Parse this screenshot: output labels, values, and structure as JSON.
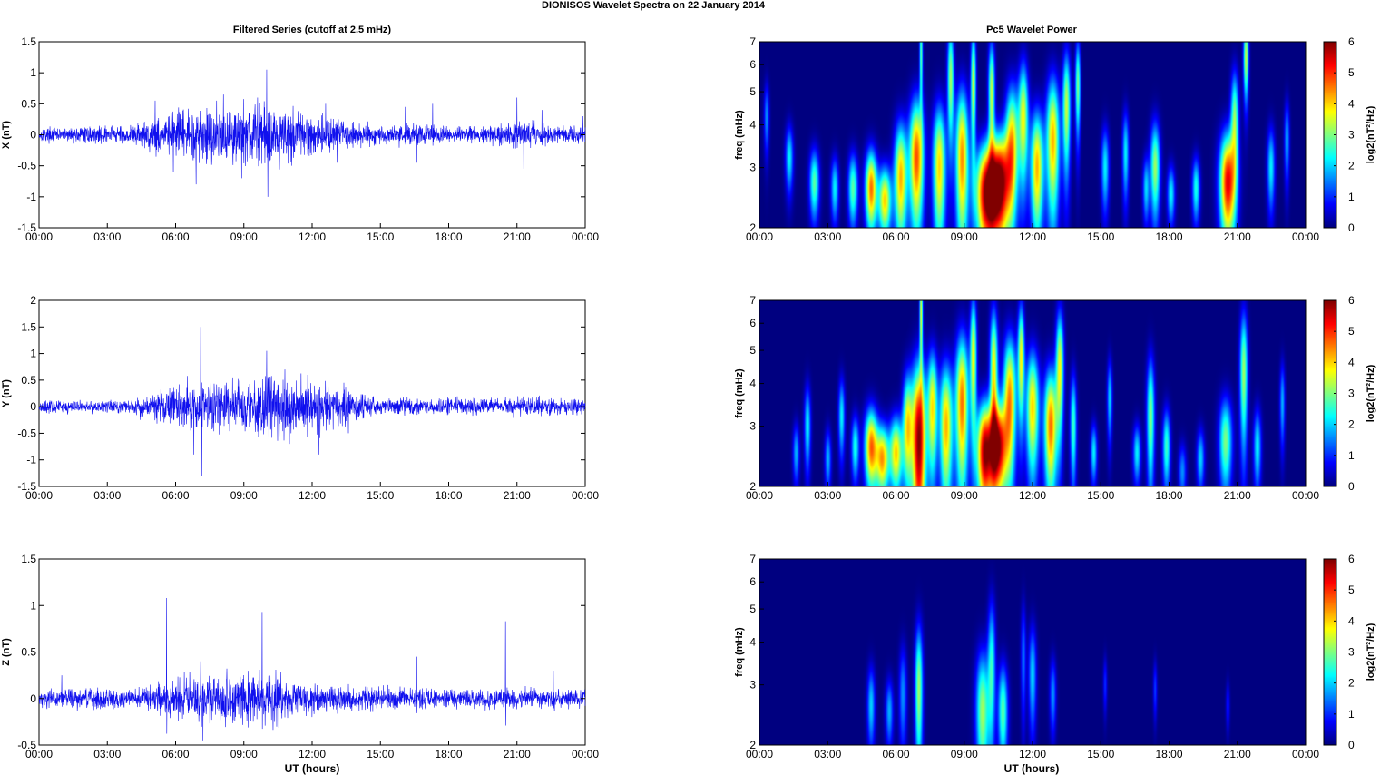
{
  "figure": {
    "title": "DIONISOS Wavelet Spectra on 22 January   2014",
    "left_title": "Filtered Series (cutoff at 2.5 mHz)",
    "right_title": "Pc5 Wavelet Power",
    "xlabel": "UT (hours)"
  },
  "colors": {
    "series_line": "#1010ee",
    "axes": "#000000",
    "background_map": "#00008f"
  },
  "chart_data": [
    {
      "type": "line",
      "panel": "x-series",
      "ylabel": "X (nT)",
      "ylim": [
        -1.5,
        1.5
      ],
      "yticks": [
        -1.5,
        -1,
        -0.5,
        0,
        0.5,
        1,
        1.5
      ],
      "ytick_labels": [
        "-1.5",
        "-1",
        "-0.5",
        "0",
        "0.5",
        "1",
        "1.5"
      ],
      "xlim_hours": [
        0,
        24
      ],
      "xtick_labels": [
        "00:00",
        "03:00",
        "06:00",
        "09:00",
        "12:00",
        "15:00",
        "18:00",
        "21:00",
        "00:00"
      ],
      "noise_amplitude": [
        [
          0,
          0.08
        ],
        [
          2,
          0.09
        ],
        [
          4,
          0.12
        ],
        [
          5,
          0.22
        ],
        [
          6,
          0.25
        ],
        [
          7,
          0.3
        ],
        [
          8,
          0.32
        ],
        [
          9,
          0.35
        ],
        [
          10,
          0.38
        ],
        [
          11,
          0.3
        ],
        [
          12,
          0.24
        ],
        [
          13,
          0.2
        ],
        [
          14,
          0.14
        ],
        [
          15,
          0.1
        ],
        [
          16,
          0.12
        ],
        [
          17,
          0.13
        ],
        [
          18,
          0.09
        ],
        [
          19,
          0.1
        ],
        [
          20,
          0.11
        ],
        [
          21,
          0.16
        ],
        [
          22,
          0.12
        ],
        [
          23,
          0.1
        ],
        [
          24,
          0.1
        ]
      ],
      "spikes": [
        [
          5.1,
          0.55
        ],
        [
          5.9,
          -0.6
        ],
        [
          6.9,
          -0.8
        ],
        [
          7.8,
          0.55
        ],
        [
          8.1,
          0.65
        ],
        [
          8.9,
          -0.7
        ],
        [
          10.0,
          1.05
        ],
        [
          10.05,
          -1.0
        ],
        [
          9.6,
          0.6
        ],
        [
          11.1,
          -0.5
        ],
        [
          12.6,
          0.5
        ],
        [
          13.1,
          -0.45
        ],
        [
          16.1,
          0.45
        ],
        [
          16.6,
          -0.45
        ],
        [
          17.3,
          0.5
        ],
        [
          21.0,
          0.6
        ],
        [
          21.3,
          -0.55
        ],
        [
          22.1,
          0.4
        ],
        [
          23.9,
          0.3
        ]
      ]
    },
    {
      "type": "line",
      "panel": "y-series",
      "ylabel": "Y (nT)",
      "ylim": [
        -1.5,
        2
      ],
      "yticks": [
        -1.5,
        -1,
        -0.5,
        0,
        0.5,
        1,
        1.5,
        2
      ],
      "ytick_labels": [
        "-1.5",
        "-1",
        "-0.5",
        "0",
        "0.5",
        "1",
        "1.5",
        "2"
      ],
      "xlim_hours": [
        0,
        24
      ],
      "xtick_labels": [
        "00:00",
        "03:00",
        "06:00",
        "09:00",
        "12:00",
        "15:00",
        "18:00",
        "21:00",
        "00:00"
      ],
      "noise_amplitude": [
        [
          0,
          0.08
        ],
        [
          4,
          0.1
        ],
        [
          5,
          0.2
        ],
        [
          6,
          0.28
        ],
        [
          7,
          0.35
        ],
        [
          8,
          0.35
        ],
        [
          9,
          0.35
        ],
        [
          10,
          0.45
        ],
        [
          11,
          0.4
        ],
        [
          12,
          0.35
        ],
        [
          13,
          0.32
        ],
        [
          14,
          0.18
        ],
        [
          15,
          0.1
        ],
        [
          16,
          0.12
        ],
        [
          17,
          0.1
        ],
        [
          18,
          0.12
        ],
        [
          19,
          0.12
        ],
        [
          20,
          0.1
        ],
        [
          21,
          0.12
        ],
        [
          22,
          0.13
        ],
        [
          24,
          0.1
        ]
      ],
      "spikes": [
        [
          7.1,
          1.5
        ],
        [
          7.15,
          -1.3
        ],
        [
          6.8,
          -0.9
        ],
        [
          10.0,
          1.05
        ],
        [
          10.1,
          -1.2
        ],
        [
          10.8,
          0.7
        ],
        [
          11.8,
          0.6
        ],
        [
          12.3,
          -0.9
        ],
        [
          11.0,
          -0.7
        ],
        [
          8.5,
          0.55
        ],
        [
          13.4,
          0.45
        ],
        [
          13.6,
          -0.5
        ]
      ]
    },
    {
      "type": "line",
      "panel": "z-series",
      "ylabel": "Z (nT)",
      "ylim": [
        -0.5,
        1.5
      ],
      "yticks": [
        -0.5,
        0,
        0.5,
        1,
        1.5
      ],
      "ytick_labels": [
        "-0.5",
        "0",
        "0.5",
        "1",
        "1.5"
      ],
      "xlim_hours": [
        0,
        24
      ],
      "xtick_labels": [
        "00:00",
        "03:00",
        "06:00",
        "09:00",
        "12:00",
        "15:00",
        "18:00",
        "21:00",
        "00:00"
      ],
      "noise_amplitude": [
        [
          0,
          0.07
        ],
        [
          2,
          0.08
        ],
        [
          4,
          0.08
        ],
        [
          5,
          0.1
        ],
        [
          6,
          0.14
        ],
        [
          7,
          0.2
        ],
        [
          8,
          0.18
        ],
        [
          9,
          0.2
        ],
        [
          10,
          0.22
        ],
        [
          11,
          0.16
        ],
        [
          12,
          0.12
        ],
        [
          13,
          0.1
        ],
        [
          16,
          0.08
        ],
        [
          18,
          0.07
        ],
        [
          21,
          0.08
        ],
        [
          24,
          0.07
        ]
      ],
      "spikes": [
        [
          5.6,
          1.08
        ],
        [
          7.2,
          -0.45
        ],
        [
          7.1,
          0.4
        ],
        [
          9.8,
          0.93
        ],
        [
          10.1,
          -0.4
        ],
        [
          16.6,
          0.45
        ],
        [
          20.5,
          0.83
        ],
        [
          22.6,
          0.3
        ],
        [
          1.0,
          0.25
        ]
      ]
    },
    {
      "type": "heatmap",
      "panel": "x-wavelet",
      "ylabel": "freq (mHz)",
      "yscale": "log",
      "ylim": [
        2,
        7
      ],
      "yticks": [
        2,
        3,
        4,
        5,
        6,
        7
      ],
      "xlim_hours": [
        0,
        24
      ],
      "xtick_labels": [
        "00:00",
        "03:00",
        "06:00",
        "09:00",
        "12:00",
        "15:00",
        "18:00",
        "21:00",
        "00:00"
      ],
      "colorbar_label": "log2(nT²/Hz)",
      "clim": [
        0,
        6
      ],
      "colorbar_ticks": [
        0,
        1,
        2,
        3,
        4,
        5,
        6
      ],
      "blobs": [
        [
          0.3,
          4.2,
          0.08,
          0.7,
          1.6
        ],
        [
          1.3,
          3.2,
          0.12,
          0.5,
          2.2
        ],
        [
          2.4,
          2.7,
          0.15,
          0.45,
          2.8
        ],
        [
          3.3,
          2.6,
          0.12,
          0.4,
          2.2
        ],
        [
          4.1,
          2.6,
          0.15,
          0.45,
          2.8
        ],
        [
          4.9,
          2.6,
          0.18,
          0.5,
          4.6
        ],
        [
          5.5,
          2.4,
          0.2,
          0.4,
          4.0
        ],
        [
          6.2,
          2.8,
          0.2,
          0.8,
          4.2
        ],
        [
          6.9,
          3.2,
          0.22,
          1.0,
          4.8
        ],
        [
          7.1,
          6.5,
          0.05,
          1.5,
          2.8
        ],
        [
          7.9,
          3.0,
          0.2,
          1.0,
          4.0
        ],
        [
          8.4,
          5.5,
          0.1,
          1.5,
          3.2
        ],
        [
          8.9,
          3.2,
          0.2,
          1.2,
          4.4
        ],
        [
          9.4,
          5.3,
          0.08,
          1.5,
          3.4
        ],
        [
          10.0,
          2.5,
          0.35,
          0.65,
          6.0
        ],
        [
          10.6,
          2.7,
          0.3,
          0.7,
          5.3
        ],
        [
          10.2,
          5.0,
          0.1,
          1.3,
          3.4
        ],
        [
          11.1,
          3.5,
          0.2,
          1.1,
          4.0
        ],
        [
          11.6,
          4.2,
          0.15,
          1.2,
          3.6
        ],
        [
          12.2,
          3.0,
          0.2,
          0.9,
          4.2
        ],
        [
          12.9,
          3.6,
          0.2,
          1.2,
          4.2
        ],
        [
          13.5,
          4.5,
          0.12,
          1.3,
          3.4
        ],
        [
          14.0,
          5.2,
          0.08,
          1.2,
          3.0
        ],
        [
          15.2,
          3.0,
          0.12,
          0.6,
          2.2
        ],
        [
          16.1,
          3.3,
          0.1,
          0.7,
          2.2
        ],
        [
          17.0,
          2.6,
          0.1,
          0.4,
          2.0
        ],
        [
          17.4,
          3.0,
          0.15,
          0.7,
          3.2
        ],
        [
          18.1,
          2.5,
          0.12,
          0.35,
          2.2
        ],
        [
          19.2,
          2.6,
          0.12,
          0.4,
          2.4
        ],
        [
          20.6,
          2.7,
          0.25,
          0.7,
          5.4
        ],
        [
          20.9,
          4.2,
          0.12,
          1.0,
          3.0
        ],
        [
          21.4,
          6.3,
          0.08,
          1.2,
          3.4
        ],
        [
          22.5,
          3.0,
          0.12,
          0.6,
          2.2
        ],
        [
          23.2,
          3.6,
          0.08,
          0.7,
          1.8
        ]
      ]
    },
    {
      "type": "heatmap",
      "panel": "y-wavelet",
      "ylabel": "freq (mHz)",
      "yscale": "log",
      "ylim": [
        2,
        7
      ],
      "yticks": [
        2,
        3,
        4,
        5,
        6,
        7
      ],
      "xlim_hours": [
        0,
        24
      ],
      "xtick_labels": [
        "00:00",
        "03:00",
        "06:00",
        "09:00",
        "12:00",
        "15:00",
        "18:00",
        "21:00",
        "00:00"
      ],
      "colorbar_label": "log2(nT²/Hz)",
      "clim": [
        0,
        6
      ],
      "colorbar_ticks": [
        0,
        1,
        2,
        3,
        4,
        5,
        6
      ],
      "blobs": [
        [
          1.6,
          2.5,
          0.1,
          0.35,
          1.8
        ],
        [
          2.1,
          3.0,
          0.1,
          0.6,
          2.2
        ],
        [
          3.0,
          2.4,
          0.1,
          0.35,
          1.8
        ],
        [
          3.6,
          3.2,
          0.1,
          0.6,
          2.2
        ],
        [
          4.2,
          2.6,
          0.12,
          0.4,
          2.4
        ],
        [
          4.9,
          2.6,
          0.2,
          0.5,
          4.6
        ],
        [
          5.4,
          2.4,
          0.2,
          0.4,
          4.2
        ],
        [
          6.0,
          2.5,
          0.2,
          0.45,
          4.0
        ],
        [
          6.5,
          3.0,
          0.15,
          0.8,
          3.6
        ],
        [
          7.0,
          2.7,
          0.22,
          1.2,
          6.0
        ],
        [
          7.1,
          6.5,
          0.05,
          1.5,
          3.6
        ],
        [
          7.6,
          3.4,
          0.15,
          1.0,
          3.8
        ],
        [
          8.2,
          3.0,
          0.2,
          1.0,
          4.2
        ],
        [
          8.9,
          3.5,
          0.2,
          1.3,
          4.6
        ],
        [
          9.4,
          4.8,
          0.1,
          1.5,
          3.6
        ],
        [
          9.9,
          2.5,
          0.25,
          0.65,
          5.8
        ],
        [
          10.5,
          2.6,
          0.25,
          0.6,
          5.6
        ],
        [
          10.3,
          4.4,
          0.12,
          1.4,
          3.8
        ],
        [
          11.0,
          3.6,
          0.2,
          1.2,
          4.4
        ],
        [
          11.5,
          4.8,
          0.1,
          1.3,
          3.6
        ],
        [
          12.0,
          3.4,
          0.2,
          1.0,
          4.0
        ],
        [
          12.8,
          3.0,
          0.2,
          0.9,
          4.6
        ],
        [
          13.2,
          4.5,
          0.12,
          1.3,
          3.6
        ],
        [
          13.8,
          3.0,
          0.1,
          0.8,
          2.6
        ],
        [
          14.7,
          2.5,
          0.1,
          0.35,
          2.2
        ],
        [
          15.4,
          3.6,
          0.08,
          0.7,
          2.0
        ],
        [
          16.6,
          2.5,
          0.12,
          0.35,
          2.2
        ],
        [
          17.2,
          3.2,
          0.12,
          1.0,
          3.0
        ],
        [
          17.9,
          2.6,
          0.12,
          0.5,
          2.6
        ],
        [
          18.6,
          2.2,
          0.12,
          0.3,
          1.6
        ],
        [
          19.4,
          2.4,
          0.12,
          0.35,
          2.0
        ],
        [
          20.5,
          2.7,
          0.2,
          0.6,
          3.0
        ],
        [
          21.3,
          4.3,
          0.12,
          1.4,
          3.2
        ],
        [
          21.9,
          2.6,
          0.12,
          0.5,
          2.2
        ],
        [
          23.0,
          3.5,
          0.08,
          0.7,
          1.8
        ]
      ]
    },
    {
      "type": "heatmap",
      "panel": "z-wavelet",
      "ylabel": "freq (mHz)",
      "yscale": "log",
      "ylim": [
        2,
        7
      ],
      "yticks": [
        2,
        3,
        4,
        5,
        6,
        7
      ],
      "xlim_hours": [
        0,
        24
      ],
      "xtick_labels": [
        "00:00",
        "03:00",
        "06:00",
        "09:00",
        "12:00",
        "15:00",
        "18:00",
        "21:00",
        "00:00"
      ],
      "colorbar_label": "log2(nT²/Hz)",
      "clim": [
        0,
        6
      ],
      "colorbar_ticks": [
        0,
        1,
        2,
        3,
        4,
        5,
        6
      ],
      "blobs": [
        [
          4.9,
          2.6,
          0.12,
          0.5,
          2.0
        ],
        [
          5.7,
          2.5,
          0.12,
          0.4,
          1.8
        ],
        [
          6.3,
          2.8,
          0.12,
          0.7,
          1.6
        ],
        [
          7.0,
          2.9,
          0.12,
          1.0,
          3.2
        ],
        [
          9.8,
          2.5,
          0.2,
          0.8,
          3.2
        ],
        [
          10.2,
          3.4,
          0.12,
          1.2,
          2.4
        ],
        [
          10.7,
          2.5,
          0.15,
          0.6,
          2.8
        ],
        [
          12.0,
          3.2,
          0.12,
          0.8,
          2.0
        ],
        [
          12.9,
          2.8,
          0.1,
          0.5,
          1.6
        ],
        [
          11.6,
          3.6,
          0.08,
          1.0,
          1.4
        ],
        [
          15.2,
          3.0,
          0.06,
          0.4,
          1.0
        ],
        [
          17.4,
          2.9,
          0.06,
          0.4,
          1.1
        ],
        [
          20.6,
          2.6,
          0.06,
          0.3,
          0.9
        ]
      ]
    }
  ]
}
